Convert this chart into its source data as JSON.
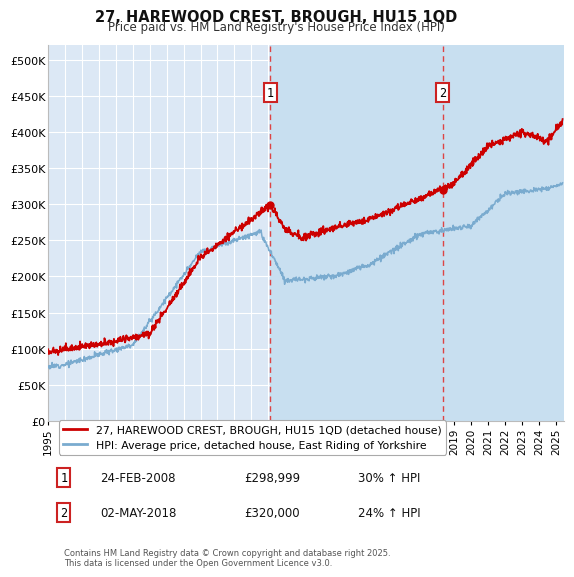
{
  "title": "27, HAREWOOD CREST, BROUGH, HU15 1QD",
  "subtitle": "Price paid vs. HM Land Registry's House Price Index (HPI)",
  "ylabel_ticks": [
    "£0",
    "£50K",
    "£100K",
    "£150K",
    "£200K",
    "£250K",
    "£300K",
    "£350K",
    "£400K",
    "£450K",
    "£500K"
  ],
  "ytick_values": [
    0,
    50000,
    100000,
    150000,
    200000,
    250000,
    300000,
    350000,
    400000,
    450000,
    500000
  ],
  "ylim": [
    0,
    520000
  ],
  "xlim_start": 1995.0,
  "xlim_end": 2025.5,
  "background_color": "#ffffff",
  "plot_bg_color": "#dce8f5",
  "grid_color": "#ffffff",
  "legend1_label": "27, HAREWOOD CREST, BROUGH, HU15 1QD (detached house)",
  "legend2_label": "HPI: Average price, detached house, East Riding of Yorkshire",
  "sale1_date": 2008.12,
  "sale1_price": 298999,
  "sale2_date": 2018.33,
  "sale2_price": 320000,
  "footnote": "Contains HM Land Registry data © Crown copyright and database right 2025.\nThis data is licensed under the Open Government Licence v3.0.",
  "red_line_color": "#cc0000",
  "blue_line_color": "#7aabcf",
  "vline_color": "#dd4444",
  "shade_color": "#c8dff0",
  "box_edge_color": "#cc2222",
  "xtick_years": [
    1995,
    1996,
    1997,
    1998,
    1999,
    2000,
    2001,
    2002,
    2003,
    2004,
    2005,
    2006,
    2007,
    2008,
    2009,
    2010,
    2011,
    2012,
    2013,
    2014,
    2015,
    2016,
    2017,
    2018,
    2019,
    2020,
    2021,
    2022,
    2023,
    2024,
    2025
  ]
}
